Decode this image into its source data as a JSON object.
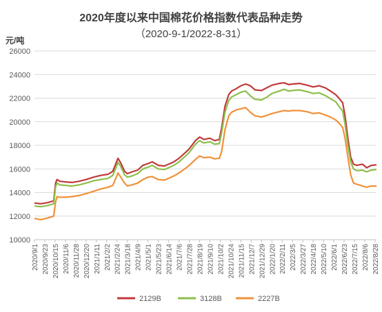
{
  "chart_data": {
    "type": "line",
    "title": "2020年度以来中国棉花价格指数代表品种走势",
    "subtitle": "（2020-9-1/2022-8-31）",
    "ylabel": "元/吨",
    "xlabel": "",
    "ylim": [
      10000,
      26000
    ],
    "yticks": [
      10000,
      12000,
      14000,
      16000,
      18000,
      20000,
      22000,
      24000,
      26000
    ],
    "xlim": [
      "2020-09-01",
      "2022-08-31"
    ],
    "xticks": [
      "2020/9/1",
      "2020/9/23",
      "2020/10/15",
      "2020/11/6",
      "2020/11/28",
      "2020/12/20",
      "2021/1/11",
      "2021/2/2",
      "2021/2/24",
      "2021/3/18",
      "2021/4/9",
      "2021/5/1",
      "2021/5/23",
      "2021/6/14",
      "2021/7/6",
      "2021/7/28",
      "2021/8/19",
      "2021/9/10",
      "2021/10/2",
      "2021/10/24",
      "2021/11/15",
      "2021/12/7",
      "2021/12/29",
      "2022/1/20",
      "2022/2/11",
      "2022/3/5",
      "2022/3/27",
      "2022/4/18",
      "2022/5/10",
      "2022/6/1",
      "2022/6/23",
      "2022/7/15",
      "2022/8/6",
      "2022/8/28"
    ],
    "grid": "horizontal",
    "legend_position": "bottom",
    "series": [
      {
        "name": "2129B",
        "color": "#c0393b",
        "points": [
          [
            "2020-09-01",
            13100
          ],
          [
            "2020-09-15",
            13050
          ],
          [
            "2020-09-30",
            13150
          ],
          [
            "2020-10-12",
            13300
          ],
          [
            "2020-10-16",
            14800
          ],
          [
            "2020-10-19",
            15100
          ],
          [
            "2020-10-25",
            14950
          ],
          [
            "2020-11-06",
            14900
          ],
          [
            "2020-11-20",
            14850
          ],
          [
            "2020-12-05",
            14950
          ],
          [
            "2020-12-20",
            15100
          ],
          [
            "2021-01-05",
            15300
          ],
          [
            "2021-01-20",
            15450
          ],
          [
            "2021-02-05",
            15550
          ],
          [
            "2021-02-15",
            15800
          ],
          [
            "2021-02-26",
            16900
          ],
          [
            "2021-03-04",
            16500
          ],
          [
            "2021-03-12",
            15800
          ],
          [
            "2021-03-18",
            15600
          ],
          [
            "2021-03-28",
            15750
          ],
          [
            "2021-04-09",
            15900
          ],
          [
            "2021-04-20",
            16300
          ],
          [
            "2021-05-01",
            16450
          ],
          [
            "2021-05-10",
            16600
          ],
          [
            "2021-05-23",
            16300
          ],
          [
            "2021-06-05",
            16250
          ],
          [
            "2021-06-14",
            16400
          ],
          [
            "2021-06-25",
            16600
          ],
          [
            "2021-07-06",
            16900
          ],
          [
            "2021-07-20",
            17400
          ],
          [
            "2021-07-28",
            17700
          ],
          [
            "2021-08-10",
            18400
          ],
          [
            "2021-08-19",
            18700
          ],
          [
            "2021-08-28",
            18500
          ],
          [
            "2021-09-10",
            18600
          ],
          [
            "2021-09-20",
            18400
          ],
          [
            "2021-09-30",
            18500
          ],
          [
            "2021-10-05",
            19500
          ],
          [
            "2021-10-12",
            21300
          ],
          [
            "2021-10-20",
            22300
          ],
          [
            "2021-10-26",
            22600
          ],
          [
            "2021-11-05",
            22800
          ],
          [
            "2021-11-15",
            23050
          ],
          [
            "2021-11-25",
            23200
          ],
          [
            "2021-12-05",
            23050
          ],
          [
            "2021-12-15",
            22700
          ],
          [
            "2021-12-29",
            22650
          ],
          [
            "2022-01-10",
            22900
          ],
          [
            "2022-01-20",
            23100
          ],
          [
            "2022-02-05",
            23250
          ],
          [
            "2022-02-15",
            23300
          ],
          [
            "2022-02-25",
            23150
          ],
          [
            "2022-03-05",
            23200
          ],
          [
            "2022-03-20",
            23250
          ],
          [
            "2022-04-05",
            23100
          ],
          [
            "2022-04-18",
            22950
          ],
          [
            "2022-05-01",
            23050
          ],
          [
            "2022-05-15",
            22850
          ],
          [
            "2022-05-25",
            22600
          ],
          [
            "2022-06-05",
            22300
          ],
          [
            "2022-06-12",
            22000
          ],
          [
            "2022-06-20",
            21600
          ],
          [
            "2022-06-25",
            20500
          ],
          [
            "2022-07-01",
            18600
          ],
          [
            "2022-07-07",
            17000
          ],
          [
            "2022-07-13",
            16400
          ],
          [
            "2022-07-20",
            16300
          ],
          [
            "2022-08-01",
            16400
          ],
          [
            "2022-08-10",
            16100
          ],
          [
            "2022-08-20",
            16300
          ],
          [
            "2022-08-31",
            16350
          ]
        ]
      },
      {
        "name": "3128B",
        "color": "#8bbf4a",
        "points": [
          [
            "2020-09-01",
            12850
          ],
          [
            "2020-09-15",
            12800
          ],
          [
            "2020-09-30",
            12900
          ],
          [
            "2020-10-12",
            13050
          ],
          [
            "2020-10-16",
            14500
          ],
          [
            "2020-10-19",
            14800
          ],
          [
            "2020-10-25",
            14650
          ],
          [
            "2020-11-06",
            14600
          ],
          [
            "2020-11-20",
            14550
          ],
          [
            "2020-12-05",
            14650
          ],
          [
            "2020-12-20",
            14800
          ],
          [
            "2021-01-05",
            15000
          ],
          [
            "2021-01-20",
            15100
          ],
          [
            "2021-02-05",
            15200
          ],
          [
            "2021-02-15",
            15450
          ],
          [
            "2021-02-26",
            16550
          ],
          [
            "2021-03-04",
            16200
          ],
          [
            "2021-03-12",
            15500
          ],
          [
            "2021-03-18",
            15300
          ],
          [
            "2021-03-28",
            15400
          ],
          [
            "2021-04-09",
            15600
          ],
          [
            "2021-04-20",
            16000
          ],
          [
            "2021-05-01",
            16150
          ],
          [
            "2021-05-10",
            16300
          ],
          [
            "2021-05-23",
            16000
          ],
          [
            "2021-06-05",
            15950
          ],
          [
            "2021-06-14",
            16100
          ],
          [
            "2021-06-25",
            16300
          ],
          [
            "2021-07-06",
            16600
          ],
          [
            "2021-07-20",
            17100
          ],
          [
            "2021-07-28",
            17400
          ],
          [
            "2021-08-10",
            18100
          ],
          [
            "2021-08-19",
            18400
          ],
          [
            "2021-08-28",
            18200
          ],
          [
            "2021-09-10",
            18300
          ],
          [
            "2021-09-20",
            18100
          ],
          [
            "2021-09-30",
            18150
          ],
          [
            "2021-10-05",
            19100
          ],
          [
            "2021-10-12",
            20800
          ],
          [
            "2021-10-20",
            21800
          ],
          [
            "2021-10-26",
            22100
          ],
          [
            "2021-11-05",
            22300
          ],
          [
            "2021-11-15",
            22500
          ],
          [
            "2021-11-25",
            22600
          ],
          [
            "2021-12-05",
            22200
          ],
          [
            "2021-12-15",
            21900
          ],
          [
            "2021-12-29",
            21850
          ],
          [
            "2022-01-10",
            22100
          ],
          [
            "2022-01-20",
            22400
          ],
          [
            "2022-02-05",
            22600
          ],
          [
            "2022-02-15",
            22750
          ],
          [
            "2022-02-25",
            22600
          ],
          [
            "2022-03-05",
            22650
          ],
          [
            "2022-03-20",
            22700
          ],
          [
            "2022-04-05",
            22550
          ],
          [
            "2022-04-18",
            22400
          ],
          [
            "2022-05-01",
            22450
          ],
          [
            "2022-05-15",
            22200
          ],
          [
            "2022-05-25",
            21950
          ],
          [
            "2022-06-05",
            21700
          ],
          [
            "2022-06-12",
            21300
          ],
          [
            "2022-06-20",
            20900
          ],
          [
            "2022-06-25",
            19800
          ],
          [
            "2022-07-01",
            18000
          ],
          [
            "2022-07-07",
            16600
          ],
          [
            "2022-07-13",
            16000
          ],
          [
            "2022-07-20",
            15850
          ],
          [
            "2022-08-01",
            15900
          ],
          [
            "2022-08-10",
            15750
          ],
          [
            "2022-08-20",
            15900
          ],
          [
            "2022-08-31",
            15950
          ]
        ]
      },
      {
        "name": "2227B",
        "color": "#f0903a",
        "points": [
          [
            "2020-09-01",
            11800
          ],
          [
            "2020-09-15",
            11700
          ],
          [
            "2020-09-30",
            11850
          ],
          [
            "2020-10-12",
            12000
          ],
          [
            "2020-10-16",
            13200
          ],
          [
            "2020-10-19",
            13650
          ],
          [
            "2020-10-25",
            13600
          ],
          [
            "2020-11-06",
            13600
          ],
          [
            "2020-11-20",
            13650
          ],
          [
            "2020-12-05",
            13750
          ],
          [
            "2020-12-20",
            13900
          ],
          [
            "2021-01-05",
            14100
          ],
          [
            "2021-01-20",
            14300
          ],
          [
            "2021-02-05",
            14450
          ],
          [
            "2021-02-15",
            14600
          ],
          [
            "2021-02-26",
            15650
          ],
          [
            "2021-03-04",
            15300
          ],
          [
            "2021-03-12",
            14800
          ],
          [
            "2021-03-18",
            14550
          ],
          [
            "2021-03-28",
            14650
          ],
          [
            "2021-04-09",
            14800
          ],
          [
            "2021-04-20",
            15100
          ],
          [
            "2021-05-01",
            15300
          ],
          [
            "2021-05-10",
            15350
          ],
          [
            "2021-05-23",
            15100
          ],
          [
            "2021-06-05",
            15050
          ],
          [
            "2021-06-14",
            15200
          ],
          [
            "2021-06-25",
            15400
          ],
          [
            "2021-07-06",
            15650
          ],
          [
            "2021-07-20",
            16050
          ],
          [
            "2021-07-28",
            16300
          ],
          [
            "2021-08-10",
            16800
          ],
          [
            "2021-08-19",
            17100
          ],
          [
            "2021-08-28",
            16950
          ],
          [
            "2021-09-10",
            17000
          ],
          [
            "2021-09-20",
            16850
          ],
          [
            "2021-09-30",
            16900
          ],
          [
            "2021-10-05",
            17500
          ],
          [
            "2021-10-12",
            19300
          ],
          [
            "2021-10-20",
            20500
          ],
          [
            "2021-10-26",
            20800
          ],
          [
            "2021-11-05",
            21000
          ],
          [
            "2021-11-15",
            21100
          ],
          [
            "2021-11-25",
            21200
          ],
          [
            "2021-12-05",
            20800
          ],
          [
            "2021-12-15",
            20500
          ],
          [
            "2021-12-29",
            20400
          ],
          [
            "2022-01-10",
            20550
          ],
          [
            "2022-01-20",
            20700
          ],
          [
            "2022-02-05",
            20850
          ],
          [
            "2022-02-15",
            20950
          ],
          [
            "2022-02-25",
            20900
          ],
          [
            "2022-03-05",
            20950
          ],
          [
            "2022-03-20",
            20950
          ],
          [
            "2022-04-05",
            20850
          ],
          [
            "2022-04-18",
            20700
          ],
          [
            "2022-05-01",
            20750
          ],
          [
            "2022-05-15",
            20550
          ],
          [
            "2022-05-25",
            20400
          ],
          [
            "2022-06-05",
            20150
          ],
          [
            "2022-06-12",
            19900
          ],
          [
            "2022-06-20",
            19500
          ],
          [
            "2022-06-25",
            18600
          ],
          [
            "2022-07-01",
            17000
          ],
          [
            "2022-07-07",
            15500
          ],
          [
            "2022-07-13",
            14800
          ],
          [
            "2022-07-20",
            14700
          ],
          [
            "2022-08-01",
            14550
          ],
          [
            "2022-08-10",
            14450
          ],
          [
            "2022-08-20",
            14550
          ],
          [
            "2022-08-31",
            14550
          ]
        ]
      }
    ]
  }
}
